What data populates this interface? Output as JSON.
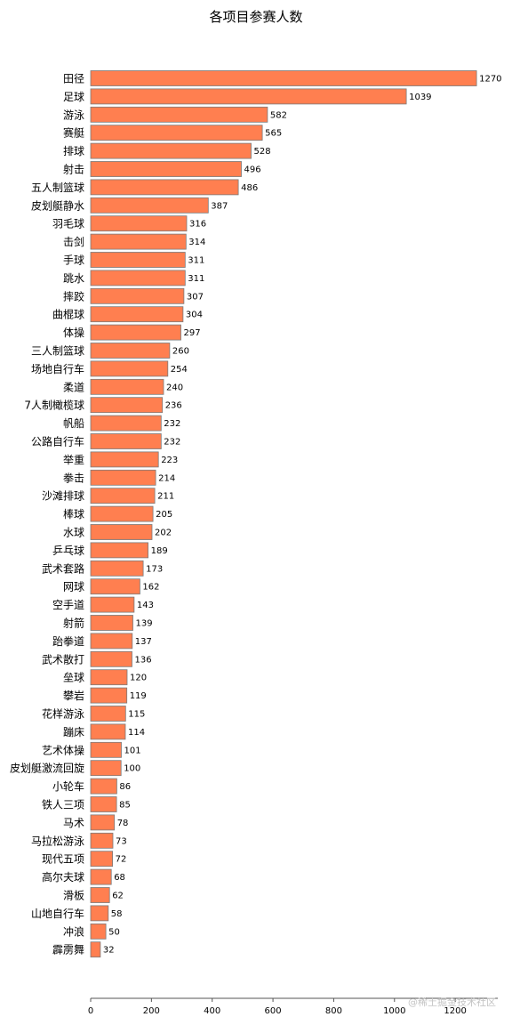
{
  "chart_data": {
    "type": "bar",
    "orientation": "horizontal",
    "title": "各项目参赛人数",
    "xlabel": "",
    "ylabel": "",
    "xlim": [
      0,
      1340
    ],
    "xticks": [
      0,
      200,
      400,
      600,
      800,
      1000,
      1200
    ],
    "grid": false,
    "categories": [
      "田径",
      "足球",
      "游泳",
      "赛艇",
      "排球",
      "射击",
      "五人制篮球",
      "皮划艇静水",
      "羽毛球",
      "击剑",
      "手球",
      "跳水",
      "摔跤",
      "曲棍球",
      "体操",
      "三人制篮球",
      "场地自行车",
      "柔道",
      "7人制橄榄球",
      "帆船",
      "公路自行车",
      "举重",
      "拳击",
      "沙滩排球",
      "棒球",
      "水球",
      "乒乓球",
      "武术套路",
      "网球",
      "空手道",
      "射箭",
      "跆拳道",
      "武术散打",
      "垒球",
      "攀岩",
      "花样游泳",
      "蹦床",
      "艺术体操",
      "皮划艇激流回旋",
      "小轮车",
      "铁人三项",
      "马术",
      "马拉松游泳",
      "现代五项",
      "高尔夫球",
      "滑板",
      "山地自行车",
      "冲浪",
      "霹雳舞"
    ],
    "values": [
      1270,
      1039,
      582,
      565,
      528,
      496,
      486,
      387,
      316,
      314,
      311,
      311,
      307,
      304,
      297,
      260,
      254,
      240,
      236,
      232,
      232,
      223,
      214,
      211,
      205,
      202,
      189,
      173,
      162,
      143,
      139,
      137,
      136,
      120,
      119,
      115,
      114,
      101,
      100,
      86,
      85,
      78,
      73,
      72,
      68,
      62,
      58,
      50,
      32
    ],
    "colors": {
      "bar": "#ff7f50",
      "edge": "#7a7a7a"
    }
  },
  "watermark": "@稀土掘金技术社区"
}
